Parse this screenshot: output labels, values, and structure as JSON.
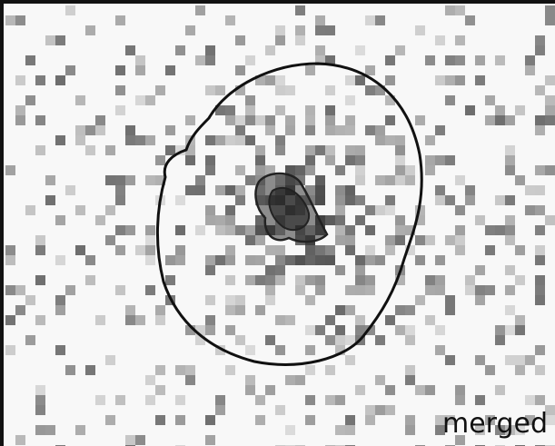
{
  "label": "merged"
}
